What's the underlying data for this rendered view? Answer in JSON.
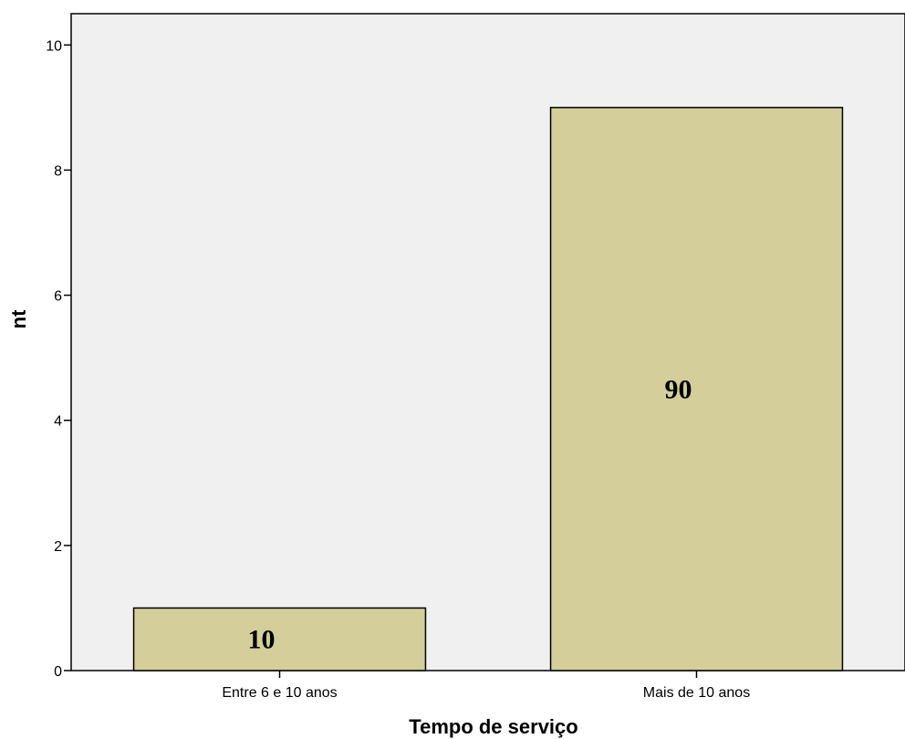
{
  "chart_data": {
    "type": "bar",
    "title": "",
    "xlabel": "Tempo de serviço",
    "ylabel": "nt",
    "categories": [
      "Entre 6 e 10 anos",
      "Mais de 10 anos"
    ],
    "values": [
      1,
      9
    ],
    "data_labels": [
      "10",
      "90"
    ],
    "ylim": [
      0,
      10.5
    ],
    "yticks": [
      0,
      2,
      4,
      6,
      8,
      10
    ],
    "grid": false,
    "legend": "none",
    "colors": {
      "plot_background": "#f0f0f0",
      "bar_fill": "#d4ce9a",
      "bar_stroke": "#000000"
    }
  }
}
